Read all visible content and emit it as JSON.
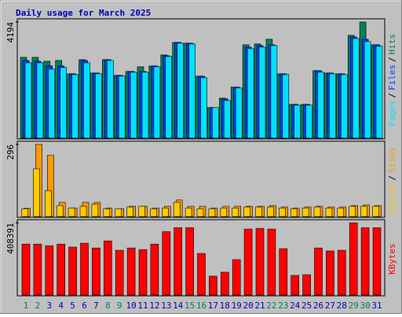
{
  "legend_separator": "/",
  "chart_data": [
    {
      "type": "bar",
      "title": "Daily usage for March 2025",
      "series": [
        {
          "name": "Hits",
          "color": "#00805c",
          "values": [
            2919,
            2919,
            2777,
            2806,
            2324,
            2834,
            2352,
            2834,
            2267,
            2409,
            2579,
            2607,
            3004,
            3457,
            3429,
            2239,
            1105,
            1445,
            1842,
            3372,
            3401,
            3571,
            2324,
            1219,
            1219,
            2437,
            2352,
            2324,
            3713,
            4194,
            3372
          ]
        },
        {
          "name": "Files",
          "color": "#0040ff",
          "values": [
            2806,
            2778,
            2608,
            2608,
            2324,
            2806,
            2352,
            2834,
            2267,
            2409,
            2409,
            2607,
            2976,
            3457,
            3429,
            2239,
            1105,
            1417,
            1842,
            3287,
            3344,
            3372,
            2324,
            1219,
            1219,
            2437,
            2352,
            2324,
            3656,
            3571,
            3372
          ]
        },
        {
          "name": "Pages",
          "color": "#00e0ff",
          "values": [
            2721,
            2721,
            2494,
            2551,
            2296,
            2721,
            2324,
            2806,
            2239,
            2381,
            2381,
            2579,
            2947,
            3429,
            3401,
            2182,
            1105,
            1360,
            1814,
            3231,
            3287,
            3344,
            2296,
            1190,
            1190,
            2381,
            2324,
            2296,
            3599,
            3486,
            3316
          ]
        }
      ],
      "ylim": [
        0,
        4194
      ],
      "yticks": [
        4194
      ]
    },
    {
      "type": "bar",
      "series": [
        {
          "name": "Sites",
          "color": "#ff9900",
          "values": [
            34,
            296,
            251,
            58,
            35,
            58,
            58,
            35,
            32,
            42,
            42,
            35,
            42,
            68,
            42,
            42,
            35,
            42,
            42,
            42,
            42,
            45,
            39,
            35,
            39,
            42,
            39,
            39,
            45,
            48,
            45
          ]
        },
        {
          "name": "Visits",
          "color": "#ffcc00",
          "values": [
            32,
            196,
            106,
            45,
            35,
            42,
            51,
            32,
            32,
            39,
            42,
            32,
            35,
            58,
            35,
            32,
            32,
            35,
            35,
            39,
            39,
            39,
            35,
            32,
            35,
            39,
            35,
            35,
            42,
            42,
            42
          ]
        }
      ],
      "ylim": [
        0,
        296
      ],
      "yticks": [
        296
      ]
    },
    {
      "type": "bar",
      "categories": [
        "1",
        "2",
        "3",
        "4",
        "5",
        "6",
        "7",
        "8",
        "9",
        "10",
        "11",
        "12",
        "13",
        "14",
        "15",
        "16",
        "17",
        "18",
        "19",
        "20",
        "21",
        "22",
        "23",
        "24",
        "25",
        "26",
        "27",
        "28",
        "29",
        "30",
        "31"
      ],
      "tick_label_colors": [
        "#00805c",
        "#00805c",
        "#0000c0",
        "#0000c0",
        "#0000c0",
        "#0000c0",
        "#0000c0",
        "#00805c",
        "#00805c",
        "#0000c0",
        "#0000c0",
        "#0000c0",
        "#0000c0",
        "#0000c0",
        "#00805c",
        "#00805c",
        "#0000c0",
        "#0000c0",
        "#0000c0",
        "#0000c0",
        "#0000c0",
        "#00805c",
        "#00805c",
        "#0000c0",
        "#0000c0",
        "#0000c0",
        "#0000c0",
        "#0000c0",
        "#00805c",
        "#00805c",
        "#0000c0"
      ],
      "series": [
        {
          "name": "KBytes",
          "color": "#ff0000",
          "values": [
            288000,
            288000,
            279000,
            288000,
            271000,
            293000,
            266000,
            306000,
            253000,
            266000,
            257000,
            288000,
            359000,
            381000,
            381000,
            235000,
            107000,
            129000,
            200000,
            373000,
            377000,
            373000,
            262000,
            111000,
            115000,
            266000,
            249000,
            253000,
            408391,
            381000,
            381000
          ]
        }
      ],
      "ylim": [
        0,
        408391
      ],
      "yticks": [
        408391
      ]
    }
  ]
}
